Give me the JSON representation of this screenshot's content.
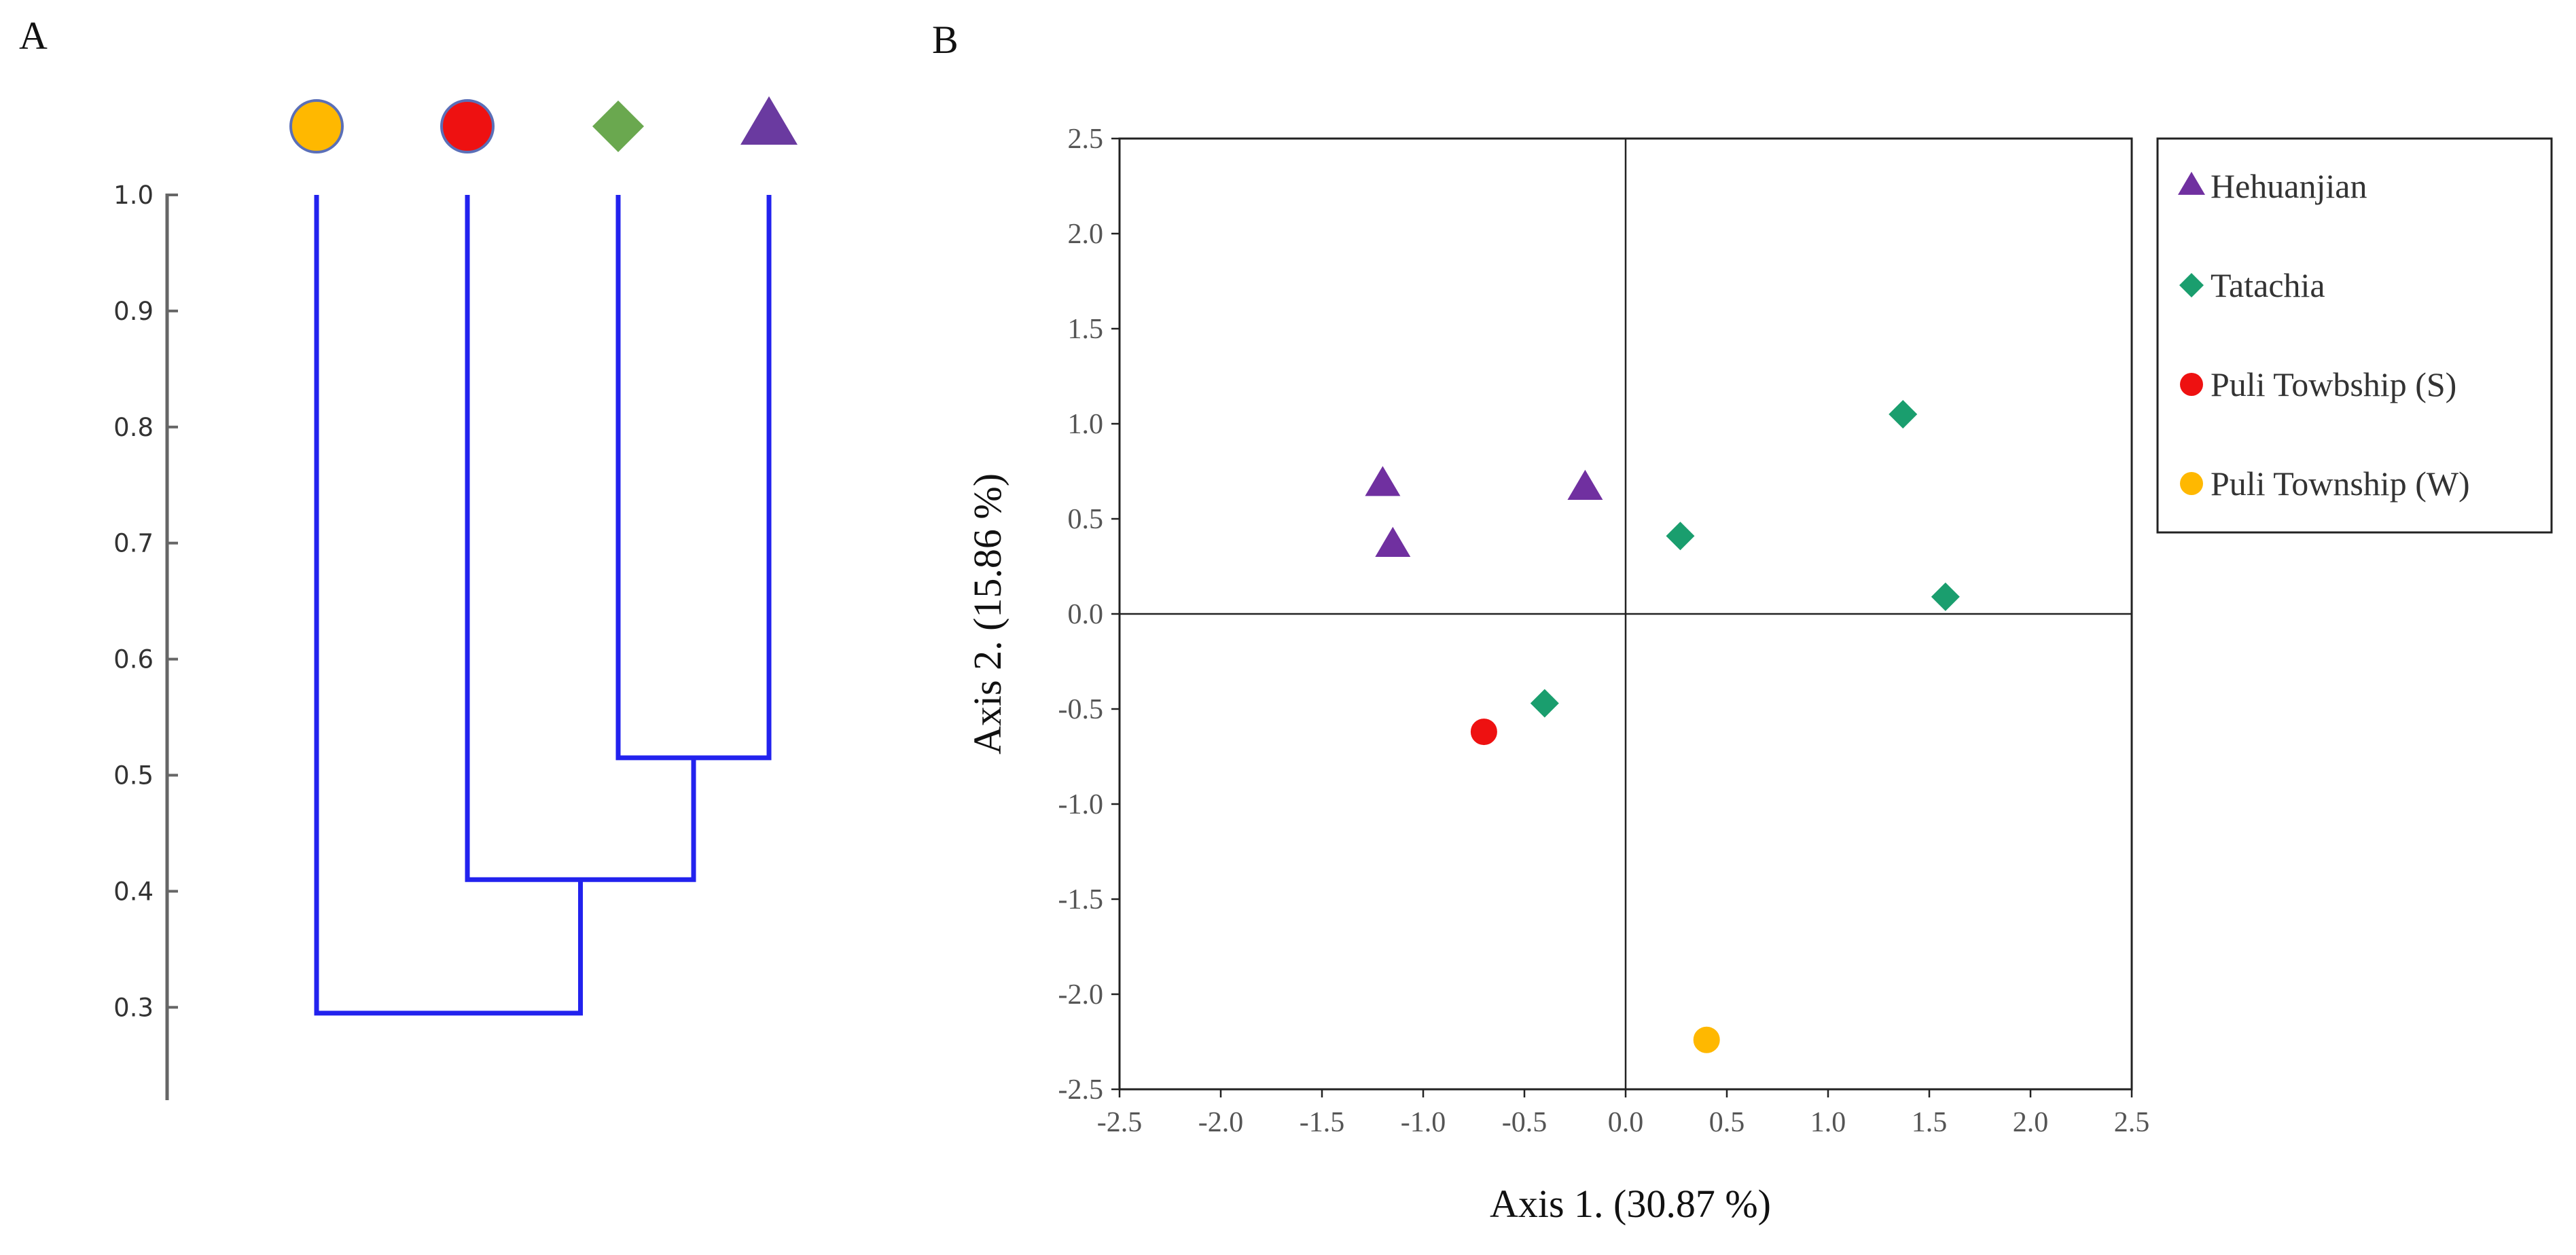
{
  "chart_data": [
    {
      "type": "dendrogram",
      "panel_label": "A",
      "y_ticks": [
        "1.0",
        "0.9",
        "0.8",
        "0.7",
        "0.6",
        "0.5",
        "0.4",
        "0.3"
      ],
      "ylim": [
        0.22,
        1.0
      ],
      "leaves": [
        {
          "id": "W",
          "marker": "circle",
          "color": "#FFB800"
        },
        {
          "id": "S",
          "marker": "circle",
          "color": "#EE1111"
        },
        {
          "id": "T",
          "marker": "diamond",
          "color": "#6AA84F"
        },
        {
          "id": "H",
          "marker": "triangle",
          "color": "#6A3AA0"
        }
      ],
      "merges": [
        {
          "members": [
            "T",
            "H"
          ],
          "height": 0.515
        },
        {
          "members": [
            "S",
            "T+H"
          ],
          "height": 0.41
        },
        {
          "members": [
            "W",
            "S+T+H"
          ],
          "height": 0.295
        }
      ],
      "line_color": "#2222EE"
    },
    {
      "type": "scatter",
      "panel_label": "B",
      "xlabel": "Axis 1. (30.87 %)",
      "ylabel": "Axis 2. (15.86 %)",
      "xlim": [
        -2.5,
        2.5
      ],
      "ylim": [
        -2.5,
        2.5
      ],
      "x_ticks": [
        "-2.5",
        "-2.0",
        "-1.5",
        "-1.0",
        "-0.5",
        "0.0",
        "0.5",
        "1.0",
        "1.5",
        "2.0",
        "2.5"
      ],
      "y_ticks": [
        "2.5",
        "2.0",
        "1.5",
        "1.0",
        "0.5",
        "0.0",
        "-0.5",
        "-1.0",
        "-1.5",
        "-2.0",
        "-2.5"
      ],
      "legend_position": "right",
      "series": [
        {
          "name": "Hehuanjian",
          "marker": "triangle",
          "color": "#7030A0",
          "points": [
            [
              -1.2,
              0.68
            ],
            [
              -1.15,
              0.36
            ],
            [
              -0.2,
              0.66
            ]
          ]
        },
        {
          "name": "Tatachia",
          "marker": "diamond",
          "color": "#1A9E6E",
          "points": [
            [
              1.37,
              1.05
            ],
            [
              0.27,
              0.41
            ],
            [
              1.58,
              0.09
            ],
            [
              -0.4,
              -0.47
            ]
          ]
        },
        {
          "name": "Puli Towbship (S)",
          "marker": "circle",
          "color": "#EE1111",
          "points": [
            [
              -0.7,
              -0.62
            ]
          ]
        },
        {
          "name": "Puli Township (W)",
          "marker": "circle",
          "color": "#FFB800",
          "points": [
            [
              0.4,
              -2.24
            ]
          ]
        }
      ]
    }
  ]
}
